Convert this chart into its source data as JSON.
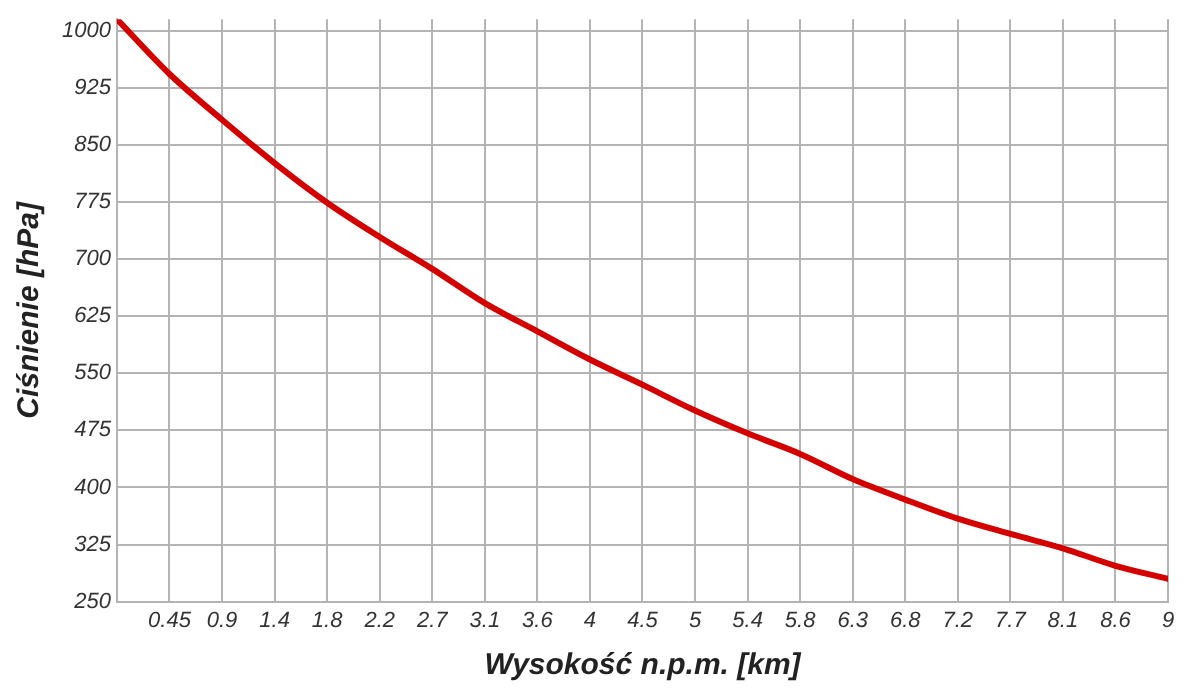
{
  "chart_data": {
    "type": "line",
    "xlabel": "Wysokość n.p.m. [km]",
    "ylabel": "Ciśnienie [hPa]",
    "x": [
      0,
      0.45,
      0.9,
      1.35,
      1.8,
      2.25,
      2.7,
      3.15,
      3.6,
      4.05,
      4.5,
      4.95,
      5.4,
      5.85,
      6.3,
      6.75,
      7.2,
      7.65,
      8.1,
      8.55,
      9
    ],
    "series": [
      {
        "color": "#d40000",
        "values": [
          1015,
          943,
          883,
          826,
          774,
          729,
          687,
          642,
          605,
          568,
          535,
          501,
          471,
          444,
          411,
          384,
          359,
          339,
          320,
          297,
          280
        ]
      }
    ],
    "xlim": [
      0,
      9
    ],
    "xticks": [
      {
        "value": 0.45,
        "label": "0.45"
      },
      {
        "value": 0.9,
        "label": "0.9"
      },
      {
        "value": 1.35,
        "label": "1.4"
      },
      {
        "value": 1.8,
        "label": "1.8"
      },
      {
        "value": 2.25,
        "label": "2.2"
      },
      {
        "value": 2.7,
        "label": "2.7"
      },
      {
        "value": 3.15,
        "label": "3.1"
      },
      {
        "value": 3.6,
        "label": "3.6"
      },
      {
        "value": 4.05,
        "label": "4"
      },
      {
        "value": 4.5,
        "label": "4.5"
      },
      {
        "value": 4.95,
        "label": "5"
      },
      {
        "value": 5.4,
        "label": "5.4"
      },
      {
        "value": 5.85,
        "label": "5.8"
      },
      {
        "value": 6.3,
        "label": "6.3"
      },
      {
        "value": 6.75,
        "label": "6.8"
      },
      {
        "value": 7.2,
        "label": "7.2"
      },
      {
        "value": 7.65,
        "label": "7.7"
      },
      {
        "value": 8.1,
        "label": "8.1"
      },
      {
        "value": 8.55,
        "label": "8.6"
      },
      {
        "value": 9,
        "label": "9"
      }
    ],
    "ylim": [
      250,
      1015
    ],
    "yticks": [
      250,
      325,
      400,
      475,
      550,
      625,
      700,
      775,
      850,
      925,
      1000
    ],
    "grid": true,
    "legend": false,
    "marker": "none",
    "line_style": "solid"
  }
}
